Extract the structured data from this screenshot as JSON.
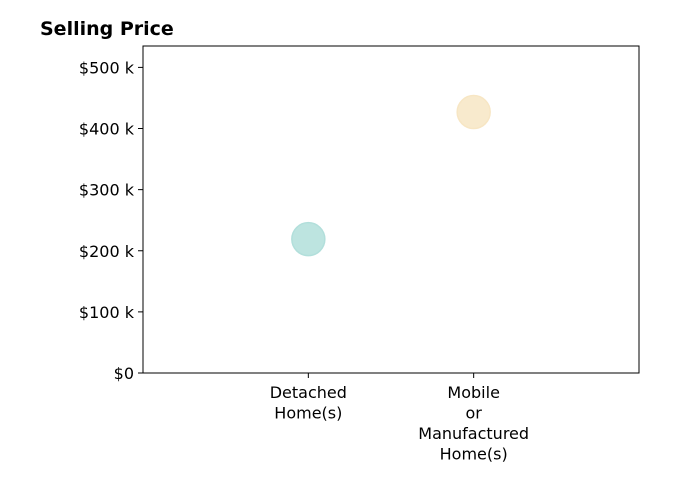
{
  "chart_data": {
    "type": "scatter",
    "title": "Selling Price",
    "xlabel": "",
    "ylabel": "",
    "categories": [
      [
        "Detached",
        "Home(s)"
      ],
      [
        "Mobile",
        "or",
        "Manufactured",
        "Home(s)"
      ]
    ],
    "points": [
      {
        "category": "Detached Home(s)",
        "value": 219000,
        "color": "#b2dfdb"
      },
      {
        "category": "Mobile or Manufactured Home(s)",
        "value": 427000,
        "color": "#f7e6c4"
      }
    ],
    "yticks": [
      0,
      100000,
      200000,
      300000,
      400000,
      500000
    ],
    "ytick_labels": [
      "$0",
      "$100 k",
      "$200 k",
      "$300 k",
      "$400 k",
      "$500 k"
    ],
    "ylim": [
      0,
      535000
    ],
    "grid": false,
    "legend": "none"
  }
}
